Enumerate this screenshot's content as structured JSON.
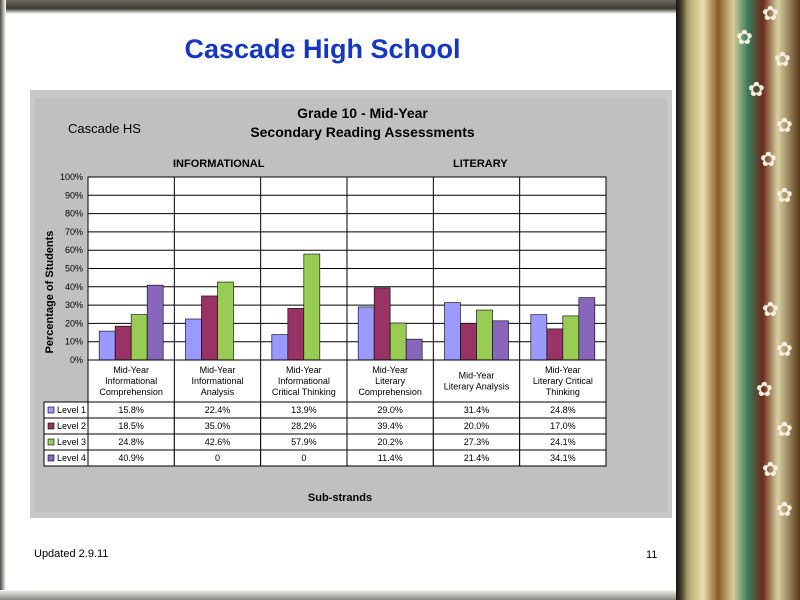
{
  "slide": {
    "title": "Cascade High School",
    "footer_left": "Updated  2.9.11",
    "page_number": "11"
  },
  "chart_data": {
    "type": "bar",
    "title": "Grade 10 - Mid-Year",
    "subtitle": "Secondary Reading Assessments",
    "school": "Cascade HS",
    "groups": [
      {
        "label": "INFORMATIONAL",
        "span": 3
      },
      {
        "label": "LITERARY",
        "span": 3
      }
    ],
    "categories": [
      "Mid-Year Informational Comprehension",
      "Mid-Year Informational Analysis",
      "Mid-Year Informational Critical Thinking",
      "Mid-Year Literary Comprehension",
      "Mid-Year Literary Analysis",
      "Mid-Year Literary Critical Thinking"
    ],
    "category_lines": [
      [
        "Mid-Year",
        "Informational",
        "Comprehension"
      ],
      [
        "Mid-Year",
        "Informational",
        "Analysis"
      ],
      [
        "Mid-Year",
        "Informational",
        "Critical Thinking"
      ],
      [
        "Mid-Year",
        "Literary",
        "Comprehension"
      ],
      [
        "Mid-Year",
        "Literary Analysis"
      ],
      [
        "Mid-Year",
        "Literary Critical",
        "Thinking"
      ]
    ],
    "series": [
      {
        "name": "Level 1",
        "color": "#9999ff",
        "values": [
          15.8,
          22.4,
          13.9,
          29.0,
          31.4,
          24.8
        ],
        "labels": [
          "15.8%",
          "22.4%",
          "13.9%",
          "29.0%",
          "31.4%",
          "24.8%"
        ]
      },
      {
        "name": "Level 2",
        "color": "#993366",
        "values": [
          18.5,
          35.0,
          28.2,
          39.4,
          20.0,
          17.0
        ],
        "labels": [
          "18.5%",
          "35.0%",
          "28.2%",
          "39.4%",
          "20.0%",
          "17.0%"
        ]
      },
      {
        "name": "Level 3",
        "color": "#99cc55",
        "values": [
          24.8,
          42.6,
          57.9,
          20.2,
          27.3,
          24.1
        ],
        "labels": [
          "24.8%",
          "42.6%",
          "57.9%",
          "20.2%",
          "27.3%",
          "24.1%"
        ]
      },
      {
        "name": "Level 4",
        "color": "#8866bb",
        "values": [
          40.9,
          0,
          0,
          11.4,
          21.4,
          34.1
        ],
        "labels": [
          "40.9%",
          "0",
          "0",
          "11.4%",
          "21.4%",
          "34.1%"
        ]
      }
    ],
    "ylabel": "Percentage of Students",
    "xlabel": "Sub-strands",
    "ylim": [
      0,
      100
    ],
    "yticks": [
      "0%",
      "10%",
      "20%",
      "30%",
      "40%",
      "50%",
      "60%",
      "70%",
      "80%",
      "90%",
      "100%"
    ],
    "grid": true,
    "legend": "data-table"
  }
}
